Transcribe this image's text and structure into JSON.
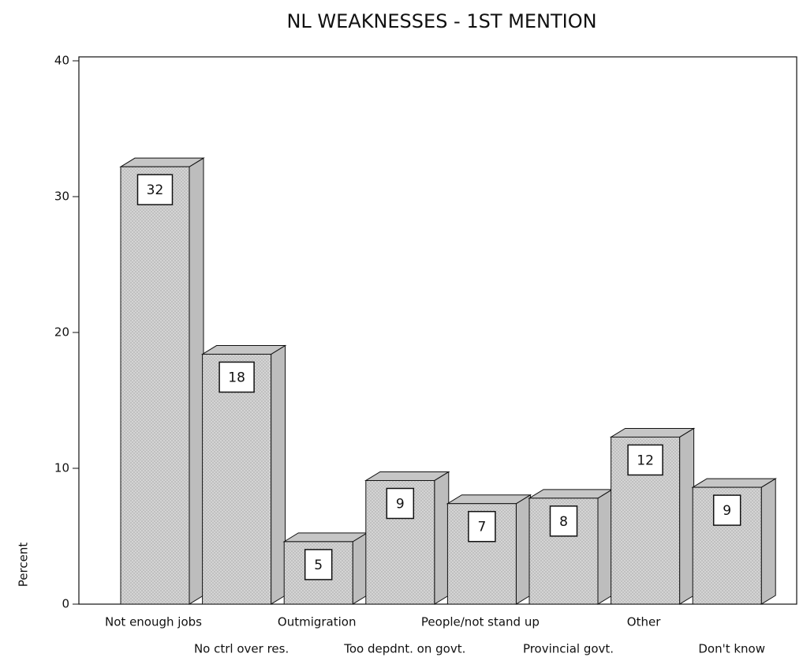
{
  "chart_data": {
    "type": "bar3d",
    "title": "NL WEAKNESSES - 1ST MENTION",
    "y_label": "Percent",
    "categories": [
      "Not enough jobs",
      "No ctrl over res.",
      "Outmigration",
      "Too depdnt. on govt.",
      "People/not stand up",
      "Provincial govt.",
      "Other",
      "Don't know"
    ],
    "values": [
      32.2,
      18.4,
      4.6,
      9.1,
      7.4,
      7.8,
      12.3,
      8.6
    ],
    "value_labels": [
      "32",
      "18",
      "5",
      "9",
      "7",
      "8",
      "12",
      "9"
    ],
    "color": "#d4d4d4",
    "ylim": [
      0,
      40
    ],
    "yticks": [
      0,
      10,
      20,
      30,
      40
    ]
  }
}
